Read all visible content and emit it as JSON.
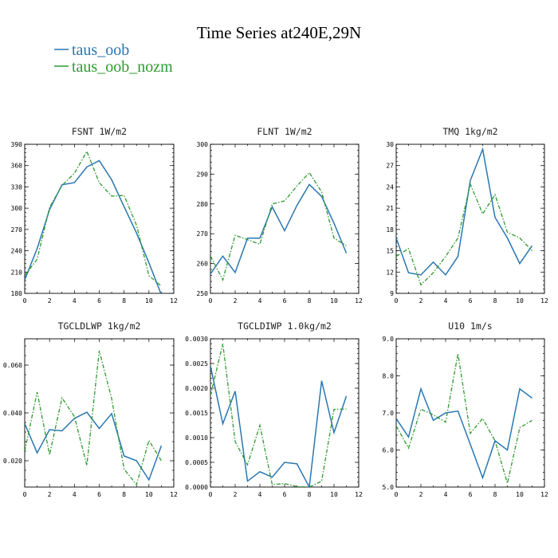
{
  "figure_title": "Time Series at240E,29N",
  "colors": {
    "taus_oob": "#2a77b0",
    "taus_oob_nozm": "#2f9a2f"
  },
  "chart_data": [
    {
      "type": "line",
      "title": "FSNT   1W/m2",
      "x": [
        0,
        1,
        2,
        3,
        4,
        5,
        6,
        7,
        8,
        9,
        10,
        11
      ],
      "xlim": [
        0,
        12
      ],
      "xticks": [
        0,
        2,
        4,
        6,
        8,
        10,
        12
      ],
      "ylim": [
        180,
        390
      ],
      "yticks": [
        180,
        210,
        240,
        270,
        300,
        330,
        360,
        390
      ],
      "ytick_labels": [
        "180",
        "210",
        "240",
        "270",
        "300",
        "330",
        "360",
        "390"
      ],
      "legend": "top-left",
      "series": [
        {
          "name": "taus_oob",
          "values": [
            199,
            243,
            298,
            333,
            336,
            358,
            367,
            340,
            302,
            265,
            223,
            178
          ]
        },
        {
          "name": "taus_oob_nozm",
          "values": [
            205,
            228,
            301,
            332,
            349,
            380,
            336,
            317,
            318,
            276,
            205,
            190
          ]
        }
      ]
    },
    {
      "type": "line",
      "title": "FLNT   1W/m2",
      "x": [
        0,
        1,
        2,
        3,
        4,
        5,
        6,
        7,
        8,
        9,
        10,
        11
      ],
      "xlim": [
        0,
        12
      ],
      "xticks": [
        0,
        2,
        4,
        6,
        8,
        10,
        12
      ],
      "ylim": [
        250,
        300
      ],
      "yticks": [
        250,
        260,
        270,
        280,
        290,
        300
      ],
      "ytick_labels": [
        "250",
        "260",
        "270",
        "280",
        "290",
        "300"
      ],
      "series": [
        {
          "name": "taus_oob",
          "values": [
            256.5,
            262.5,
            257,
            268.5,
            268.5,
            279,
            271,
            279.5,
            286.5,
            282.5,
            273.5,
            263.5
          ]
        },
        {
          "name": "taus_oob_nozm",
          "values": [
            262.5,
            254.5,
            269.5,
            268,
            266.5,
            280,
            281,
            286,
            290.5,
            284,
            268.5,
            266
          ]
        }
      ]
    },
    {
      "type": "line",
      "title": "TMQ   1kg/m2",
      "x": [
        0,
        1,
        2,
        3,
        4,
        5,
        6,
        7,
        8,
        9,
        10,
        11
      ],
      "xlim": [
        0,
        12
      ],
      "xticks": [
        0,
        2,
        4,
        6,
        8,
        10,
        12
      ],
      "ylim": [
        9,
        30
      ],
      "yticks": [
        9,
        12,
        15,
        18,
        21,
        24,
        27,
        30
      ],
      "ytick_labels": [
        "9",
        "12",
        "15",
        "18",
        "21",
        "24",
        "27",
        "30"
      ],
      "series": [
        {
          "name": "taus_oob",
          "values": [
            16.8,
            11.9,
            11.6,
            13.4,
            11.6,
            14.2,
            24.9,
            29.3,
            19.7,
            16.8,
            13.2,
            15.7
          ]
        },
        {
          "name": "taus_oob_nozm",
          "values": [
            14.2,
            15.3,
            10.2,
            11.9,
            14.2,
            16.8,
            24.4,
            20.2,
            22.9,
            17.6,
            16.8,
            15.0
          ]
        }
      ]
    },
    {
      "type": "line",
      "title": "TGCLDLWP   1kg/m2",
      "x": [
        0,
        1,
        2,
        3,
        4,
        5,
        6,
        7,
        8,
        9,
        10,
        11
      ],
      "xlim": [
        0,
        12
      ],
      "xticks": [
        0,
        2,
        4,
        6,
        8,
        10,
        12
      ],
      "ylim": [
        0.009,
        0.071
      ],
      "yticks": [
        0.02,
        0.04,
        0.06
      ],
      "ytick_labels": [
        "0.020",
        "0.040",
        "0.060"
      ],
      "series": [
        {
          "name": "taus_oob",
          "values": [
            0.0355,
            0.0233,
            0.033,
            0.0325,
            0.0377,
            0.0403,
            0.0335,
            0.0397,
            0.022,
            0.02,
            0.012,
            0.0263
          ]
        },
        {
          "name": "taus_oob_nozm",
          "values": [
            0.024,
            0.0487,
            0.0225,
            0.0463,
            0.0385,
            0.018,
            0.066,
            0.046,
            0.0165,
            0.01,
            0.0285,
            0.02
          ]
        }
      ]
    },
    {
      "type": "line",
      "title": "TGCLDIWP   1.0kg/m2",
      "x": [
        0,
        1,
        2,
        3,
        4,
        5,
        6,
        7,
        8,
        9,
        10,
        11
      ],
      "xlim": [
        0,
        12
      ],
      "xticks": [
        0,
        2,
        4,
        6,
        8,
        10,
        12
      ],
      "ylim": [
        0,
        0.003
      ],
      "yticks": [
        0,
        0.0005,
        0.001,
        0.0015,
        0.002,
        0.0025,
        0.003
      ],
      "ytick_labels": [
        "0.0000",
        "0.0005",
        "0.0010",
        "0.0015",
        "0.0020",
        "0.0025",
        "0.0030"
      ],
      "series": [
        {
          "name": "taus_oob",
          "values": [
            0.00245,
            0.00128,
            0.00194,
            0.00012,
            0.00031,
            0.0002,
            0.0005,
            0.00047,
            0.0,
            0.00215,
            0.0011,
            0.00184
          ]
        },
        {
          "name": "taus_oob_nozm",
          "values": [
            0.00185,
            0.0029,
            0.00092,
            0.00045,
            0.00125,
            5e-05,
            7e-05,
            1e-05,
            0.0,
            0.00012,
            0.00157,
            0.00158
          ]
        }
      ]
    },
    {
      "type": "line",
      "title": "U10   1m/s",
      "x": [
        0,
        1,
        2,
        3,
        4,
        5,
        6,
        7,
        8,
        9,
        10,
        11
      ],
      "xlim": [
        0,
        12
      ],
      "xticks": [
        0,
        2,
        4,
        6,
        8,
        10,
        12
      ],
      "ylim": [
        5,
        9
      ],
      "yticks": [
        5,
        6,
        7,
        8,
        9
      ],
      "ytick_labels": [
        "5.0",
        "6.0",
        "7.0",
        "8.0",
        "9.0"
      ],
      "series": [
        {
          "name": "taus_oob",
          "values": [
            6.85,
            6.35,
            7.65,
            6.8,
            7.0,
            7.05,
            6.15,
            5.25,
            6.25,
            6.0,
            7.65,
            7.4
          ]
        },
        {
          "name": "taus_oob_nozm",
          "values": [
            6.65,
            6.05,
            7.1,
            6.95,
            6.75,
            8.6,
            6.45,
            6.85,
            6.25,
            5.1,
            6.6,
            6.8
          ]
        }
      ]
    }
  ]
}
